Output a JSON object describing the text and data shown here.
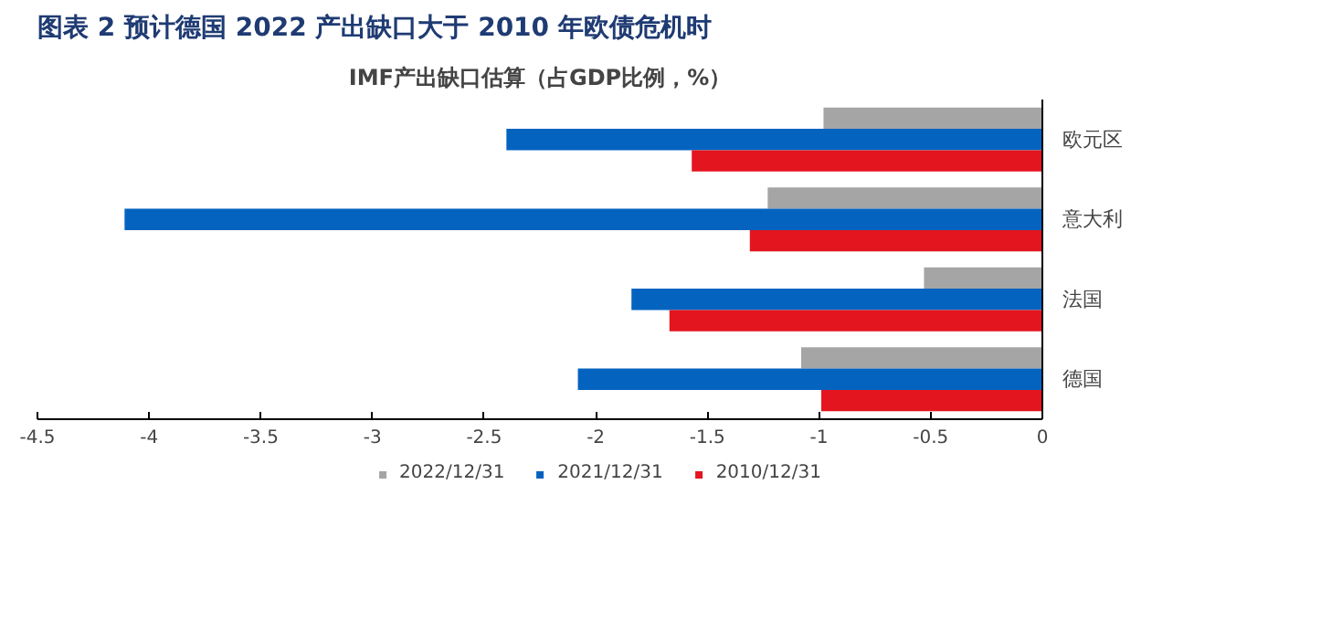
{
  "chart_data": {
    "type": "bar",
    "orientation": "horizontal",
    "title": "图表 2   预计德国 2022 产出缺口大于 2010 年欧债危机时",
    "subtitle": "IMF产出缺口估算（占GDP比例，%）",
    "categories": [
      "欧元区",
      "意大利",
      "法国",
      "德国"
    ],
    "series": [
      {
        "name": "2022/12/31",
        "color": "#a5a5a5",
        "values": [
          -0.98,
          -1.23,
          -0.53,
          -1.08
        ]
      },
      {
        "name": "2021/12/31",
        "color": "#0563c0",
        "values": [
          -2.4,
          -4.11,
          -1.84,
          -2.08
        ]
      },
      {
        "name": "2010/12/31",
        "color": "#e3151f",
        "values": [
          -1.57,
          -1.31,
          -1.67,
          -0.99
        ]
      }
    ],
    "xlim": [
      -4.5,
      0
    ],
    "xticks": [
      -4.5,
      -4,
      -3.5,
      -3,
      -2.5,
      -2,
      -1.5,
      -1,
      -0.5,
      0
    ],
    "grid": false,
    "legend": "bottom"
  }
}
